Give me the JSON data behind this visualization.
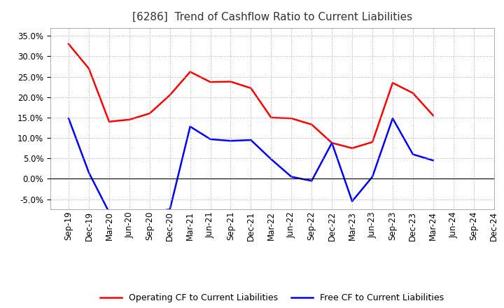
{
  "title": "[6286]  Trend of Cashflow Ratio to Current Liabilities",
  "x_labels": [
    "Sep-19",
    "Dec-19",
    "Mar-20",
    "Jun-20",
    "Sep-20",
    "Dec-20",
    "Mar-21",
    "Jun-21",
    "Sep-21",
    "Dec-21",
    "Mar-22",
    "Jun-22",
    "Sep-22",
    "Dec-22",
    "Mar-23",
    "Jun-23",
    "Sep-23",
    "Dec-23",
    "Mar-24",
    "Jun-24",
    "Sep-24",
    "Dec-24"
  ],
  "operating_cf": [
    0.33,
    0.27,
    0.14,
    0.145,
    0.16,
    0.205,
    0.262,
    0.237,
    0.238,
    0.222,
    0.15,
    0.148,
    0.133,
    0.088,
    0.075,
    0.09,
    0.235,
    0.21,
    0.155,
    null,
    null,
    null
  ],
  "free_cf": [
    0.148,
    0.015,
    -0.082,
    -0.085,
    -0.082,
    -0.075,
    0.128,
    0.097,
    0.093,
    0.095,
    0.048,
    0.005,
    -0.005,
    0.088,
    -0.055,
    0.005,
    0.148,
    0.06,
    0.045,
    null,
    null,
    null
  ],
  "operating_color": "#FF0000",
  "free_color": "#0000FF",
  "ylim": [
    -0.075,
    0.37
  ],
  "yticks": [
    -0.05,
    0.0,
    0.05,
    0.1,
    0.15,
    0.2,
    0.25,
    0.3,
    0.35
  ],
  "background_color": "#FFFFFF",
  "grid_color": "#AAAACC",
  "legend_labels": [
    "Operating CF to Current Liabilities",
    "Free CF to Current Liabilities"
  ],
  "title_fontsize": 11,
  "axis_fontsize": 8.5,
  "legend_fontsize": 9
}
